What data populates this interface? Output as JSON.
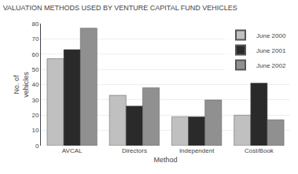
{
  "chart_data": {
    "type": "bar",
    "title": "VALUATION METHODS USED BY VENTURE CAPITAL FUND VEHICLES",
    "xlabel": "Method",
    "ylabel": [
      "No. of",
      "vehicles"
    ],
    "categories": [
      "AVCAL",
      "Directors",
      "Independent",
      "Cost/Book"
    ],
    "series": [
      {
        "name": "June 2000",
        "color": "#c0c0c0",
        "values": [
          57,
          33,
          19,
          20
        ]
      },
      {
        "name": "June 2001",
        "color": "#2a2a2a",
        "values": [
          63,
          26,
          19,
          41
        ]
      },
      {
        "name": "June 2002",
        "color": "#909090",
        "values": [
          77,
          38,
          30,
          17
        ]
      }
    ],
    "ylim": [
      0,
      80
    ],
    "yticks": [
      0,
      10,
      20,
      30,
      40,
      50,
      60,
      70,
      80
    ],
    "grid": true,
    "legend": "upper right"
  }
}
